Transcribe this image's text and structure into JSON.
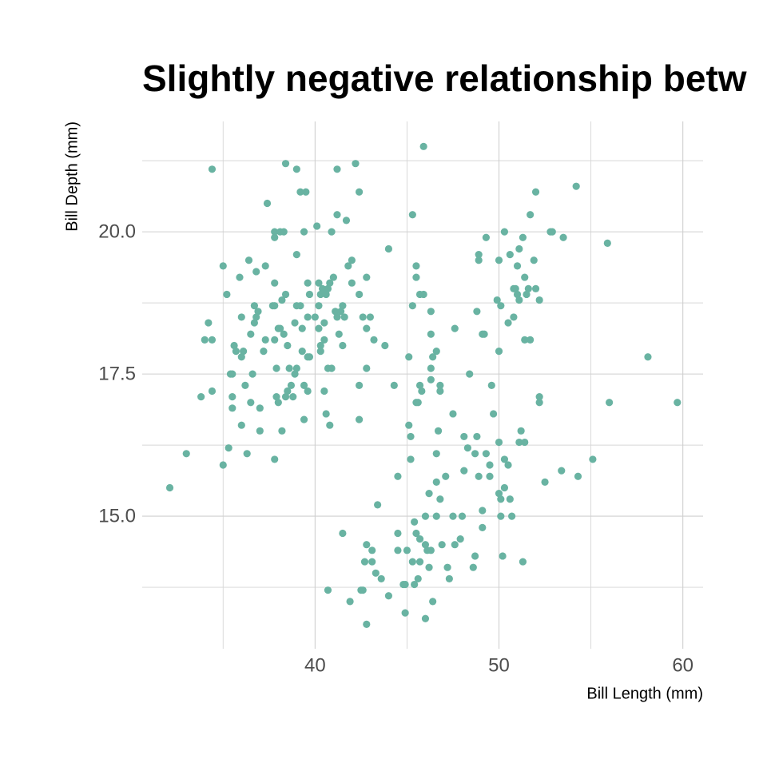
{
  "chart_data": {
    "type": "scatter",
    "title": "Slightly negative relationship betw",
    "x_label": "Bill Length (mm)",
    "y_label": "Bill Depth (mm)",
    "color": "#69b3a2",
    "grid": true,
    "xlim": [
      30.6,
      61.1
    ],
    "ylim": [
      12.67,
      21.94
    ],
    "xticks": [
      40,
      50,
      60
    ],
    "yticks": [
      {
        "value": 15,
        "label": "15.0"
      },
      17.5,
      {
        "value": 20,
        "label": "20.0"
      }
    ],
    "x_minor_ticks": [
      35,
      45,
      55
    ],
    "y_minor_ticks": [
      13.75,
      16.25,
      18.75,
      21.25
    ],
    "x": [
      32.1,
      33.0,
      34.4,
      33.8,
      34.4,
      34.2,
      34.0,
      34.4,
      35.0,
      35.0,
      35.2,
      35.3,
      35.4,
      35.5,
      35.6,
      35.7,
      35.5,
      35.5,
      35.9,
      36.0,
      36.0,
      36.2,
      36.3,
      36.1,
      36.0,
      36.4,
      36.5,
      36.7,
      36.8,
      36.7,
      36.8,
      36.5,
      37.0,
      37.0,
      36.6,
      37.2,
      36.9,
      37.3,
      37.4,
      37.3,
      37.8,
      37.8,
      37.8,
      37.7,
      37.8,
      37.8,
      37.8,
      38.2,
      38.0,
      38.1,
      37.9,
      37.9,
      38.0,
      38.3,
      38.5,
      38.1,
      38.3,
      38.4,
      38.2,
      38.4,
      39.0,
      39.2,
      39.5,
      39.4,
      39.0,
      39.6,
      39.7,
      39.2,
      39.0,
      38.9,
      39.3,
      39.6,
      39.3,
      39.6,
      39.7,
      39.0,
      38.6,
      38.9,
      38.7,
      38.5,
      38.4,
      38.8,
      39.4,
      39.6,
      39.4,
      40.1,
      40.2,
      40.3,
      40.4,
      40.7,
      40.6,
      40.0,
      40.2,
      40.5,
      40.3,
      40.3,
      40.5,
      40.2,
      40.7,
      40.5,
      40.6,
      40.8,
      40.9,
      40.8,
      41.0,
      40.9,
      40.7,
      41.2,
      41.2,
      41.1,
      41.4,
      41.2,
      41.3,
      41.5,
      41.5,
      41.6,
      41.7,
      41.8,
      42.0,
      41.5,
      41.9,
      42.2,
      42.4,
      42.0,
      42.4,
      42.4,
      42.4,
      42.8,
      42.6,
      42.8,
      42.8,
      42.7,
      42.8,
      42.6,
      42.5,
      42.8,
      43.0,
      43.2,
      43.1,
      43.1,
      43.3,
      43.4,
      43.8,
      43.6,
      44.0,
      44.0,
      44.3,
      44.5,
      44.5,
      44.5,
      44.9,
      45.0,
      44.9,
      44.8,
      45.1,
      45.1,
      45.2,
      45.2,
      45.4,
      45.3,
      45.5,
      45.5,
      45.3,
      45.7,
      45.9,
      45.5,
      45.7,
      45.8,
      45.6,
      45.3,
      45.4,
      45.6,
      45.5,
      45.7,
      45.7,
      45.9,
      46.0,
      46.0,
      46.2,
      46.1,
      46.3,
      46.0,
      46.2,
      46.3,
      46.3,
      46.4,
      46.6,
      46.3,
      46.3,
      46.6,
      46.6,
      46.6,
      46.4,
      46.7,
      46.8,
      46.8,
      46.8,
      46.9,
      47.1,
      47.3,
      47.2,
      47.5,
      47.6,
      47.5,
      47.6,
      47.9,
      48.0,
      48.1,
      48.1,
      48.4,
      48.3,
      48.7,
      48.8,
      48.6,
      48.7,
      48.8,
      48.9,
      48.9,
      48.9,
      49.1,
      49.1,
      49.2,
      49.1,
      49.3,
      49.3,
      49.5,
      49.5,
      49.6,
      49.7,
      49.9,
      50.0,
      50.0,
      50.0,
      50.0,
      50.1,
      50.1,
      50.1,
      50.2,
      50.3,
      50.3,
      50.3,
      50.6,
      50.5,
      50.5,
      50.7,
      50.6,
      50.8,
      50.8,
      50.9,
      51.0,
      51.1,
      51.1,
      51.0,
      51.3,
      51.2,
      51.1,
      51.4,
      51.3,
      51.4,
      51.6,
      51.5,
      51.7,
      52.0,
      51.9,
      52.0,
      52.2,
      51.4,
      51.7,
      52.2,
      52.2,
      52.5,
      52.8,
      52.9,
      53.5,
      53.4,
      54.2,
      54.3,
      55.1,
      55.9,
      56.0,
      58.1,
      59.7
    ],
    "y": [
      15.5,
      16.1,
      21.1,
      17.1,
      17.2,
      18.4,
      18.1,
      18.1,
      19.4,
      15.9,
      18.9,
      16.2,
      17.5,
      17.5,
      18.0,
      17.9,
      17.1,
      16.9,
      19.2,
      18.5,
      16.6,
      17.3,
      16.1,
      17.9,
      17.8,
      19.5,
      18.2,
      18.4,
      18.5,
      18.7,
      19.3,
      17.0,
      16.9,
      16.5,
      17.5,
      17.9,
      18.6,
      18.1,
      20.5,
      19.4,
      20.0,
      19.9,
      19.1,
      18.7,
      18.7,
      18.1,
      16.0,
      16.5,
      18.3,
      18.3,
      17.6,
      17.1,
      17.0,
      18.2,
      18.0,
      20.0,
      20.0,
      18.9,
      18.8,
      21.2,
      21.1,
      20.7,
      20.7,
      20.0,
      19.6,
      19.1,
      18.9,
      18.7,
      18.7,
      18.4,
      18.3,
      18.5,
      17.9,
      17.8,
      17.8,
      17.6,
      17.6,
      17.5,
      17.3,
      17.2,
      17.1,
      17.1,
      17.3,
      17.2,
      16.7,
      20.1,
      19.1,
      18.9,
      19.0,
      19.0,
      18.9,
      18.5,
      18.7,
      18.4,
      18.0,
      17.9,
      18.1,
      18.3,
      17.6,
      17.2,
      16.8,
      16.6,
      17.6,
      19.1,
      19.2,
      20.0,
      13.7,
      20.3,
      21.1,
      18.6,
      18.6,
      18.5,
      18.2,
      18.0,
      18.7,
      18.5,
      20.2,
      19.4,
      19.5,
      14.7,
      13.5,
      21.2,
      20.7,
      19.1,
      18.9,
      17.3,
      16.7,
      19.2,
      18.5,
      18.3,
      17.6,
      14.2,
      14.5,
      13.7,
      13.7,
      13.1,
      18.5,
      18.1,
      14.4,
      14.2,
      14.0,
      15.2,
      18.0,
      13.9,
      19.7,
      13.6,
      17.3,
      15.7,
      14.7,
      14.4,
      13.3,
      14.4,
      13.8,
      13.8,
      17.8,
      16.6,
      16.4,
      16.0,
      13.8,
      20.3,
      19.4,
      19.2,
      18.7,
      18.9,
      18.9,
      17.0,
      17.3,
      17.2,
      17.0,
      14.2,
      14.9,
      13.9,
      14.7,
      14.6,
      14.2,
      21.5,
      13.2,
      15.0,
      15.4,
      14.4,
      14.4,
      14.5,
      14.1,
      18.6,
      17.4,
      17.8,
      17.9,
      18.2,
      17.6,
      15.0,
      15.6,
      16.1,
      13.5,
      16.5,
      17.3,
      17.2,
      15.3,
      14.5,
      15.7,
      13.9,
      14.1,
      16.8,
      18.3,
      15.0,
      14.5,
      14.6,
      15.0,
      16.4,
      15.8,
      17.5,
      16.2,
      16.1,
      16.4,
      14.1,
      14.3,
      18.6,
      19.5,
      19.6,
      15.7,
      15.1,
      18.2,
      18.2,
      14.8,
      19.9,
      16.1,
      15.9,
      15.7,
      17.3,
      16.8,
      18.8,
      19.5,
      17.9,
      16.3,
      15.4,
      15.3,
      15.0,
      18.7,
      14.3,
      20.0,
      16.0,
      15.5,
      19.6,
      18.4,
      15.9,
      15.0,
      15.3,
      18.5,
      19.0,
      19.0,
      18.9,
      18.8,
      19.7,
      19.4,
      19.9,
      16.5,
      16.3,
      18.1,
      14.2,
      19.2,
      19.0,
      18.9,
      20.3,
      20.7,
      19.5,
      19.0,
      18.8,
      16.3,
      18.1,
      17.0,
      17.1,
      15.6,
      20.0,
      20.0,
      19.9,
      15.8,
      20.8,
      15.7,
      16.0,
      19.8,
      17.0,
      17.8,
      17.0
    ]
  }
}
